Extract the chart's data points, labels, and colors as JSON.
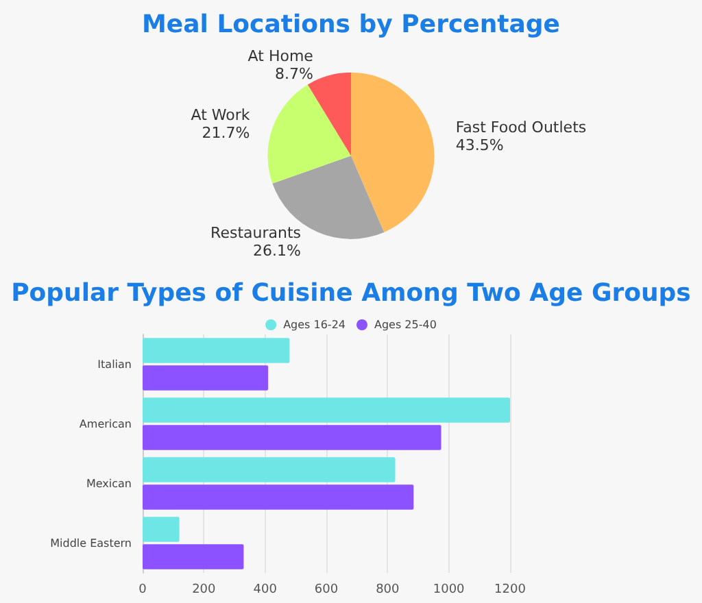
{
  "chart_data": [
    {
      "type": "pie",
      "title": "Meal Locations by Percentage",
      "categories": [
        "Fast Food Outlets",
        "Restaurants",
        "At Work",
        "At Home"
      ],
      "values": [
        43.5,
        26.1,
        21.7,
        8.7
      ],
      "value_labels": [
        "43.5%",
        "26.1%",
        "21.7%",
        "8.7%"
      ],
      "colors": [
        "#ffbb5c",
        "#a6a6a6",
        "#c8ff6e",
        "#ff5a5a"
      ]
    },
    {
      "type": "bar",
      "orientation": "horizontal",
      "title": "Popular Types of Cuisine Among Two Age Groups",
      "categories": [
        "Italian",
        "American",
        "Mexican",
        "Middle Eastern"
      ],
      "series": [
        {
          "name": "Ages 16-24",
          "color": "#6ee6e6",
          "values": [
            480,
            1200,
            825,
            120
          ]
        },
        {
          "name": "Ages 25-40",
          "color": "#8c52ff",
          "values": [
            410,
            975,
            885,
            330
          ]
        }
      ],
      "xlim": [
        0,
        1200
      ],
      "xticks": [
        0,
        200,
        400,
        600,
        800,
        1000,
        1200
      ],
      "grid": "x",
      "legend": "top"
    }
  ]
}
